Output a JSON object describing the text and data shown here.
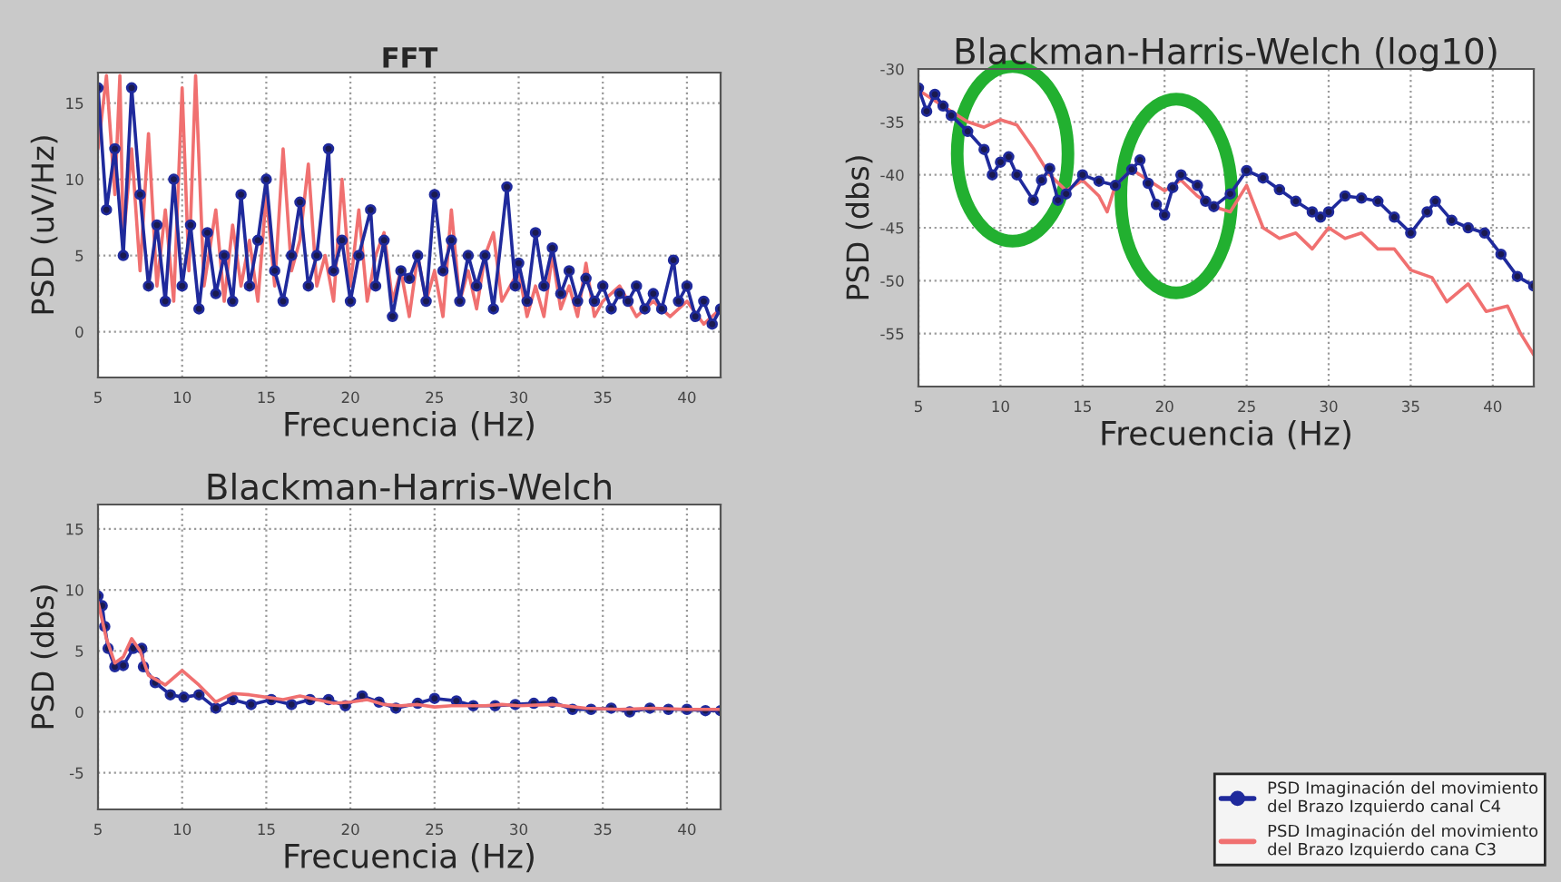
{
  "chart_data": [
    {
      "type": "line",
      "title": "FFT",
      "legend": "bottom right",
      "xlabel": "Frecuencia (Hz)",
      "ylabel": "PSD (uV/Hz)",
      "xlim": [
        5,
        42
      ],
      "xticks": [
        5,
        10,
        15,
        20,
        25,
        30,
        35,
        40
      ],
      "ylim": [
        -3,
        17
      ],
      "yticks": [
        0,
        5,
        10,
        15
      ],
      "grid": true,
      "line_style": "solid",
      "series": [
        {
          "name": "PSD Imaginación del movimiento del Brazo Izquierdo cana C3",
          "color": "#f07070",
          "marker": "none",
          "x": [
            5,
            5.5,
            6,
            6.3,
            6.5,
            7,
            7.5,
            8,
            8.5,
            9,
            9.5,
            10,
            10.4,
            10.8,
            11.3,
            12,
            12.5,
            13,
            13.5,
            14,
            14.5,
            15,
            15.5,
            16,
            16.5,
            17,
            17.5,
            18,
            18.5,
            19,
            19.5,
            20,
            20.5,
            21,
            21.5,
            22,
            22.5,
            23,
            23.5,
            24,
            24.5,
            25,
            25.5,
            26,
            26.5,
            27,
            27.5,
            28,
            28.5,
            29,
            29.5,
            30,
            30.5,
            31,
            31.5,
            32,
            32.5,
            33,
            33.5,
            34,
            34.5,
            35,
            36,
            37,
            38,
            39,
            40,
            41,
            42
          ],
          "values": [
            12,
            16.8,
            9,
            16.8,
            6,
            12,
            4,
            13,
            3,
            8,
            2,
            16,
            4,
            16.8,
            3,
            8,
            2,
            7,
            3,
            6,
            2,
            9,
            3,
            12,
            4,
            6,
            11,
            3,
            5,
            2,
            10,
            3,
            8,
            2,
            5,
            6.5,
            2,
            4,
            1,
            5,
            2,
            4,
            1,
            8,
            2,
            4,
            1.5,
            5,
            6.5,
            2,
            3,
            4,
            1,
            3,
            1,
            5,
            1.5,
            3,
            1,
            4.5,
            1,
            2,
            3,
            1,
            2,
            1,
            2,
            0.5,
            1.5
          ]
        },
        {
          "name": "PSD Imaginación del movimiento del Brazo Izquierdo canal C4",
          "color": "#1f2a9c",
          "marker": "circle",
          "x": [
            5,
            5.5,
            6,
            6.5,
            7,
            7.5,
            8,
            8.5,
            9,
            9.5,
            10,
            10.5,
            11,
            11.5,
            12,
            12.5,
            13,
            13.5,
            14,
            14.5,
            15,
            15.5,
            16,
            16.5,
            17,
            17.5,
            18,
            18.7,
            19,
            19.5,
            20,
            20.5,
            21.2,
            21.5,
            22,
            22.5,
            23,
            23.5,
            24,
            24.5,
            25,
            25.5,
            26,
            26.5,
            27,
            27.5,
            28,
            28.5,
            29.3,
            29.8,
            30,
            30.5,
            31,
            31.5,
            32,
            32.5,
            33,
            33.5,
            34,
            34.5,
            35,
            35.5,
            36,
            36.5,
            37,
            37.5,
            38,
            38.5,
            39.2,
            39.5,
            40,
            40.5,
            41,
            41.5,
            42
          ],
          "values": [
            16,
            8,
            12,
            5,
            16,
            9,
            3,
            7,
            2,
            10,
            3,
            7,
            1.5,
            6.5,
            2.5,
            5,
            2,
            9,
            3,
            6,
            10,
            4,
            2,
            5,
            8.5,
            3,
            5,
            12,
            4,
            6,
            2,
            5,
            8,
            3,
            6,
            1,
            4,
            3.5,
            5,
            2,
            9,
            4,
            6,
            2,
            5,
            3,
            5,
            1.5,
            9.5,
            3,
            4.5,
            2,
            6.5,
            3,
            5.5,
            2.5,
            4,
            2,
            3.5,
            2,
            3,
            1.5,
            2.5,
            2,
            3,
            1.5,
            2.5,
            1.5,
            4.7,
            2,
            3,
            1,
            2,
            0.5,
            1.5
          ]
        }
      ]
    },
    {
      "type": "line",
      "title": "Blackman-Harris-Welch (log10)",
      "xlabel": "Frecuencia (Hz)",
      "ylabel": "PSD (dbs)",
      "xlim": [
        5,
        42.5
      ],
      "xticks": [
        5,
        10,
        15,
        20,
        25,
        30,
        35,
        40
      ],
      "ylim": [
        -60,
        -30
      ],
      "yticks": [
        -55,
        -50,
        -45,
        -40,
        -35,
        -30
      ],
      "grid": true,
      "line_style": "solid",
      "series": [
        {
          "name": "PSD Imaginación del movimiento del Brazo Izquierdo cana C3",
          "color": "#f07070",
          "marker": "none",
          "x": [
            5,
            6,
            7,
            8,
            9,
            10,
            11,
            12,
            13,
            14,
            15,
            16,
            16.5,
            17,
            18,
            19,
            20,
            21,
            22,
            23,
            24,
            25,
            26,
            27,
            28,
            29,
            30,
            31,
            32,
            33,
            34,
            35,
            36.3,
            37.2,
            38.5,
            39.6,
            40.9,
            41.7,
            42.5
          ],
          "values": [
            -32,
            -33,
            -34,
            -35,
            -35.5,
            -34.8,
            -35.3,
            -37.5,
            -40,
            -41.5,
            -40.5,
            -42,
            -43.5,
            -41,
            -39.5,
            -40.5,
            -41.5,
            -40.5,
            -42,
            -43,
            -43.5,
            -41,
            -45,
            -46,
            -45.5,
            -47,
            -45,
            -46,
            -45.5,
            -47,
            -47,
            -49,
            -49.7,
            -52,
            -50.3,
            -52.9,
            -52.4,
            -55,
            -57
          ]
        },
        {
          "name": "PSD Imaginación del movimiento del Brazo Izquierdo canal C4",
          "color": "#1f2a9c",
          "marker": "circle",
          "x": [
            5,
            5.5,
            6,
            6.5,
            7,
            8,
            9,
            9.5,
            10,
            10.5,
            11,
            12,
            12.5,
            13,
            13.5,
            14,
            15,
            16,
            17,
            18,
            18.5,
            19,
            19.5,
            20,
            20.5,
            21,
            22,
            22.5,
            23,
            24,
            25,
            26,
            27,
            28,
            29,
            29.5,
            30,
            31,
            32,
            33,
            34,
            35,
            36,
            36.5,
            37.5,
            38.5,
            39.5,
            40.5,
            41.5,
            42.5
          ],
          "values": [
            -31.8,
            -34,
            -32.4,
            -33.5,
            -34.4,
            -35.9,
            -37.6,
            -40,
            -38.8,
            -38.3,
            -40,
            -42.4,
            -40.5,
            -39.4,
            -42.4,
            -41.8,
            -40,
            -40.6,
            -41,
            -39.5,
            -38.6,
            -40.8,
            -42.8,
            -43.8,
            -41.2,
            -40,
            -41,
            -42.5,
            -43,
            -41.8,
            -39.6,
            -40.3,
            -41.4,
            -42.5,
            -43.5,
            -44,
            -43.5,
            -42,
            -42.2,
            -42.5,
            -44,
            -45.5,
            -43.5,
            -42.5,
            -44.3,
            -45,
            -45.5,
            -47.5,
            -49.6,
            -50.5
          ]
        }
      ]
    },
    {
      "type": "line",
      "title": "Blackman-Harris-Welch",
      "xlabel": "Frecuencia (Hz)",
      "ylabel": "PSD (dbs)",
      "xlim": [
        5,
        42
      ],
      "xticks": [
        5,
        10,
        15,
        20,
        25,
        30,
        35,
        40
      ],
      "ylim": [
        -8,
        17
      ],
      "yticks": [
        -5,
        0,
        5,
        10,
        15
      ],
      "grid": true,
      "line_style": "solid",
      "series": [
        {
          "name": "PSD Imaginación del movimiento del Brazo Izquierdo canal C4",
          "color": "#1f2a9c",
          "marker": "circle",
          "x": [
            5,
            5.25,
            5.4,
            5.6,
            6,
            6.5,
            7.1,
            7.6,
            7.7,
            8.4,
            9.3,
            10.1,
            11,
            12,
            13,
            14.1,
            15.3,
            16.5,
            17.6,
            18.7,
            19.7,
            20.7,
            21.7,
            22.7,
            24,
            25,
            26.3,
            27.3,
            28.6,
            29.8,
            30.9,
            32,
            33.2,
            34.3,
            35.5,
            36.6,
            37.8,
            38.9,
            40,
            41.1,
            42
          ],
          "values": [
            9.5,
            8.7,
            7,
            5.2,
            3.7,
            3.8,
            5.2,
            5.2,
            3.7,
            2.4,
            1.4,
            1.2,
            1.4,
            0.3,
            1,
            0.6,
            1,
            0.6,
            1,
            1,
            0.5,
            1.3,
            0.8,
            0.3,
            0.7,
            1.1,
            0.9,
            0.5,
            0.5,
            0.6,
            0.7,
            0.8,
            0.2,
            0.2,
            0.3,
            0,
            0.3,
            0.2,
            0.2,
            0.1,
            0.1
          ]
        },
        {
          "name": "PSD Imaginación del movimiento del Brazo Izquierdo cana C3",
          "color": "#f07070",
          "marker": "none",
          "x": [
            5,
            5.5,
            6,
            6.5,
            7,
            7.5,
            8,
            9,
            10,
            11,
            12,
            13,
            14,
            15,
            16,
            17,
            18,
            19,
            20,
            21,
            22,
            23,
            24,
            25,
            26,
            27,
            28,
            29,
            30,
            32,
            34,
            36,
            38,
            40,
            42
          ],
          "values": [
            9,
            6,
            4,
            4.5,
            6,
            5,
            3,
            2.2,
            3.4,
            2.2,
            0.8,
            1.5,
            1.4,
            1.2,
            1,
            1.3,
            1,
            0.7,
            0.8,
            1,
            0.6,
            0.5,
            0.6,
            0.4,
            0.5,
            0.5,
            0.5,
            0.6,
            0.5,
            0.6,
            0.3,
            0.2,
            0.3,
            0.2,
            0.2
          ]
        }
      ]
    }
  ]
}
